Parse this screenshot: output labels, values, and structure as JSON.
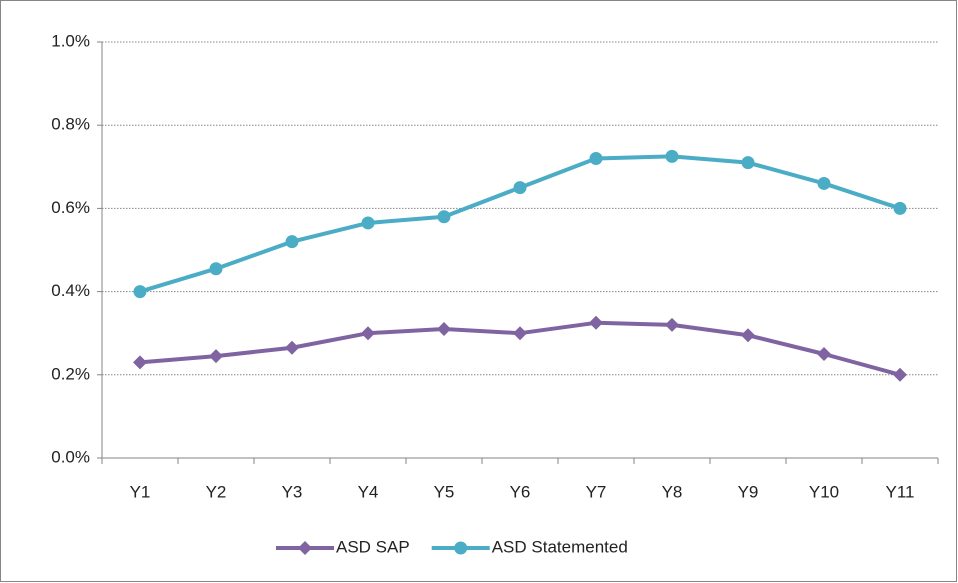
{
  "chart_data": {
    "type": "line",
    "categories": [
      "Y1",
      "Y2",
      "Y3",
      "Y4",
      "Y5",
      "Y6",
      "Y7",
      "Y8",
      "Y9",
      "Y10",
      "Y11"
    ],
    "series": [
      {
        "name": "ASD SAP",
        "color": "#8064a2",
        "marker": "diamond",
        "values": [
          0.23,
          0.245,
          0.265,
          0.3,
          0.31,
          0.3,
          0.325,
          0.32,
          0.295,
          0.25,
          0.2
        ]
      },
      {
        "name": "ASD Statemented",
        "color": "#4bacc6",
        "marker": "circle",
        "values": [
          0.4,
          0.455,
          0.52,
          0.565,
          0.58,
          0.65,
          0.72,
          0.725,
          0.71,
          0.66,
          0.6
        ]
      }
    ],
    "ylim": [
      0,
      1
    ],
    "yticks": [
      {
        "value": 0,
        "label": "0.0%"
      },
      {
        "value": 0.2,
        "label": "0.2%"
      },
      {
        "value": 0.4,
        "label": "0.4%"
      },
      {
        "value": 0.6,
        "label": "0.6%"
      },
      {
        "value": 0.8,
        "label": "0.8%"
      },
      {
        "value": 1,
        "label": "1.0%"
      }
    ],
    "grid": true,
    "legend": "bottom"
  }
}
